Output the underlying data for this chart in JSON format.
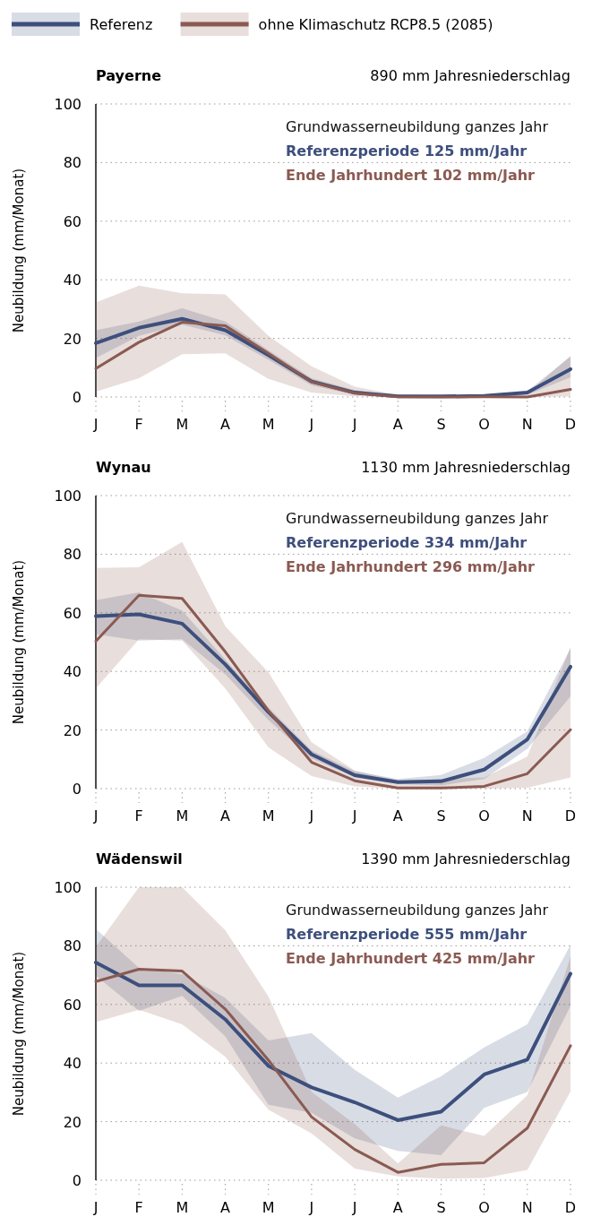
{
  "chart_data": [
    {
      "type": "line",
      "title": "Payerne",
      "subtitle": "890 mm Jahresniederschlag",
      "ylabel": "Neubildung (mm/Monat)",
      "categories": [
        "J",
        "F",
        "M",
        "A",
        "M",
        "J",
        "J",
        "A",
        "S",
        "O",
        "N",
        "D"
      ],
      "ylim": [
        0,
        100
      ],
      "yticks": [
        0,
        20,
        40,
        60,
        80,
        100
      ],
      "grid": "y",
      "legend": "top left",
      "annotations": [
        "Grundwasserneubildung ganzes Jahr",
        "Referenzperiode 125 mm/Jahr",
        "Ende Jahrhundert 102 mm/Jahr"
      ],
      "series": [
        {
          "name": "Referenz",
          "color": "#3d4f7c",
          "values": [
            18.4,
            23.6,
            26.7,
            22.8,
            14.3,
            5.3,
            1.5,
            0.2,
            0.2,
            0.4,
            1.5,
            9.5
          ],
          "lower": [
            13.3,
            20.9,
            24.7,
            21,
            12.7,
            4,
            0.8,
            0,
            0,
            0,
            0.8,
            6.7
          ],
          "upper": [
            22.8,
            25.8,
            30.3,
            25.8,
            16,
            6.4,
            2.4,
            0.4,
            0.4,
            0.8,
            2,
            13.8
          ]
        },
        {
          "name": "ohne Klimaschutz RCP8.5 (2085)",
          "color": "#8a5a52",
          "values": [
            9.7,
            18.7,
            25.5,
            24.3,
            14.9,
            5.1,
            1.3,
            0.1,
            0,
            0.1,
            0,
            2.6
          ],
          "lower": [
            1.8,
            6.4,
            14.6,
            14.9,
            6.2,
            1.5,
            0.2,
            0,
            0,
            0,
            0,
            0.2
          ],
          "upper": [
            32.3,
            38,
            35.4,
            35,
            20.9,
            10.5,
            3.5,
            0.8,
            0.5,
            0.5,
            1.3,
            14
          ]
        }
      ]
    },
    {
      "type": "line",
      "title": "Wynau",
      "subtitle": "1130 mm Jahresniederschlag",
      "ylabel": "Neubildung (mm/Monat)",
      "categories": [
        "J",
        "F",
        "M",
        "A",
        "M",
        "J",
        "J",
        "A",
        "S",
        "O",
        "N",
        "D"
      ],
      "ylim": [
        0,
        100
      ],
      "yticks": [
        0,
        20,
        40,
        60,
        80,
        100
      ],
      "grid": "y",
      "annotations": [
        "Grundwasserneubildung ganzes Jahr",
        "Referenzperiode 334 mm/Jahr",
        "Ende Jahrhundert 296 mm/Jahr"
      ],
      "series": [
        {
          "color": "#3d4f7c",
          "values": [
            58.9,
            59.5,
            56.3,
            42.4,
            26.1,
            11.7,
            4.6,
            2.2,
            2.5,
            6.5,
            16.8,
            41.6
          ],
          "lower": [
            52.7,
            50.5,
            51,
            39,
            23.4,
            10.3,
            3.8,
            1.6,
            1.1,
            3.3,
            13.6,
            31.5
          ],
          "upper": [
            64.3,
            67,
            60.8,
            44,
            27.7,
            13,
            6,
            3.3,
            4.7,
            10.5,
            19.6,
            47.8
          ]
        },
        {
          "color": "#8a5a52",
          "values": [
            50.3,
            66,
            64.9,
            46.7,
            26.6,
            9,
            2.7,
            0.2,
            0.2,
            0.8,
            5.1,
            20.1
          ],
          "lower": [
            34.2,
            51,
            50.5,
            34.2,
            14.1,
            4.3,
            0.8,
            0,
            0,
            0,
            0.3,
            3.8
          ],
          "upper": [
            75.3,
            75.5,
            84.2,
            55.4,
            39.7,
            15.8,
            6.2,
            2.7,
            3.3,
            3.8,
            10.9,
            48.4
          ]
        }
      ]
    },
    {
      "type": "line",
      "title": "Wädenswil",
      "subtitle": "1390 mm Jahresniederschlag",
      "ylabel": "Neubildung (mm/Monat)",
      "categories": [
        "J",
        "F",
        "M",
        "A",
        "M",
        "J",
        "J",
        "A",
        "S",
        "O",
        "N",
        "D"
      ],
      "ylim": [
        0,
        100
      ],
      "yticks": [
        0,
        20,
        40,
        60,
        80,
        100
      ],
      "grid": "y",
      "annotations": [
        "Grundwasserneubildung ganzes Jahr",
        "Referenzperiode 555 mm/Jahr",
        "Ende Jahrhundert 425 mm/Jahr"
      ],
      "series": [
        {
          "color": "#3d4f7c",
          "values": [
            74.3,
            66.5,
            66.5,
            54.9,
            39,
            31.7,
            26.6,
            20.5,
            23.4,
            36.1,
            41.2,
            70.5
          ],
          "lower": [
            69.8,
            57.8,
            62.9,
            49.1,
            25.8,
            23,
            14.3,
            10,
            8.6,
            24.7,
            30.1,
            59.5
          ],
          "upper": [
            85.8,
            72.5,
            70.3,
            62.2,
            47.7,
            50.2,
            37.7,
            28.2,
            35.5,
            45.3,
            53.2,
            80.3
          ]
        },
        {
          "color": "#8a5a52",
          "values": [
            67.8,
            72,
            71.4,
            58.4,
            41,
            21.6,
            10.5,
            2.7,
            5.4,
            6,
            17.8,
            45.9
          ],
          "lower": [
            54,
            58.2,
            53.2,
            42.1,
            24.1,
            16,
            4,
            1.3,
            0.5,
            0.8,
            3.5,
            30.3
          ],
          "upper": [
            79.6,
            100,
            100,
            85.3,
            62.7,
            30.1,
            19.2,
            5.7,
            18.7,
            15.1,
            29,
            76.3
          ]
        }
      ]
    }
  ]
}
